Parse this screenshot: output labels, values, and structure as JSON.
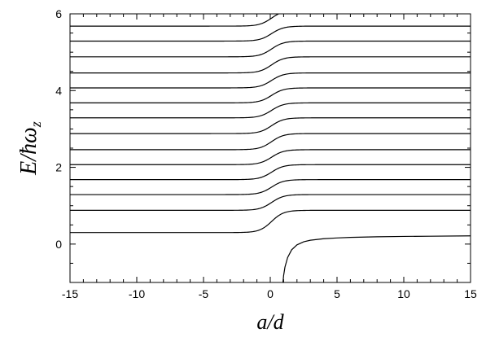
{
  "chart_data": {
    "type": "line",
    "xlabel": "a/d",
    "ylabel": "E/ħω",
    "ylabel_subscript": "z",
    "xlim": [
      -15,
      15
    ],
    "ylim": [
      -1,
      6
    ],
    "x_ticks": [
      -15,
      -10,
      -5,
      0,
      5,
      10,
      15
    ],
    "y_ticks": [
      0,
      2,
      4,
      6
    ],
    "x_tick_labels": [
      "-15",
      "-10",
      "-5",
      "0",
      "5",
      "10",
      "15"
    ],
    "y_tick_labels": [
      "0",
      "2",
      "4",
      "6"
    ],
    "x_minor_step": 1,
    "y_minor_step": 0.5,
    "grid": false,
    "line_color": "#000000",
    "series": [
      {
        "left_value": 0.3,
        "right_value": 0.88
      },
      {
        "left_value": 0.88,
        "right_value": 1.29
      },
      {
        "left_value": 1.29,
        "right_value": 1.68
      },
      {
        "left_value": 1.68,
        "right_value": 2.07
      },
      {
        "left_value": 2.07,
        "right_value": 2.46
      },
      {
        "left_value": 2.46,
        "right_value": 2.88
      },
      {
        "left_value": 2.88,
        "right_value": 3.29
      },
      {
        "left_value": 3.29,
        "right_value": 3.68
      },
      {
        "left_value": 3.68,
        "right_value": 4.07
      },
      {
        "left_value": 4.07,
        "right_value": 4.46
      },
      {
        "left_value": 4.46,
        "right_value": 4.88
      },
      {
        "left_value": 4.88,
        "right_value": 5.29
      },
      {
        "left_value": 5.29,
        "right_value": 5.68
      },
      {
        "left_value": 5.68,
        "right_value": 6.1
      }
    ],
    "bound_state_branch": {
      "x": [
        0.95,
        1.0,
        1.1,
        1.3,
        1.6,
        2.0,
        2.5,
        3.0,
        4.0,
        5.0,
        6.0,
        8.0,
        10.0,
        12.0,
        15.0
      ],
      "y": [
        -1.0,
        -0.82,
        -0.6,
        -0.35,
        -0.15,
        -0.02,
        0.06,
        0.1,
        0.14,
        0.16,
        0.175,
        0.19,
        0.2,
        0.205,
        0.215
      ]
    }
  }
}
